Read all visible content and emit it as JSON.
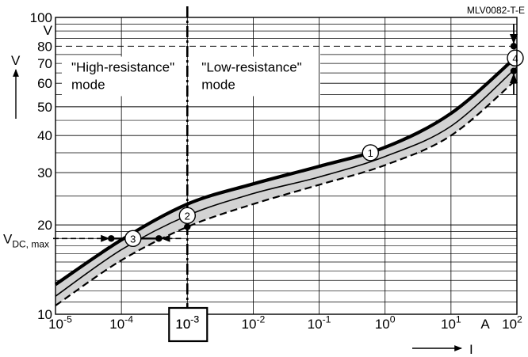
{
  "chart_data": {
    "type": "line",
    "figure_id": "MLV0082-T-E",
    "x_scale": "log",
    "y_scale": "log",
    "xlim": [
      1e-05,
      100
    ],
    "ylim": [
      10,
      100
    ],
    "x_ticks": [
      {
        "value": 1e-05,
        "base": "10",
        "exp": "-5"
      },
      {
        "value": 0.0001,
        "base": "10",
        "exp": "-4"
      },
      {
        "value": 0.001,
        "base": "10",
        "exp": "-3"
      },
      {
        "value": 0.01,
        "base": "10",
        "exp": "-2"
      },
      {
        "value": 0.1,
        "base": "10",
        "exp": "-1"
      },
      {
        "value": 1,
        "base": "10",
        "exp": "0"
      },
      {
        "value": 10,
        "base": "10",
        "exp": "1"
      },
      {
        "value": 100,
        "base": "10",
        "exp": "2"
      }
    ],
    "x_unit": "A",
    "x_symbol": "I",
    "y_ticks": [
      10,
      20,
      30,
      40,
      50,
      60,
      70,
      80,
      100
    ],
    "y_unit": "V",
    "y_symbol": "V",
    "grid": true,
    "regions": [
      {
        "label_line1": "\"High-resistance\"",
        "label_line2": "mode"
      },
      {
        "label_line1": "\"Low-resistance\"",
        "label_line2": "mode"
      }
    ],
    "boundary_current": 0.001,
    "boundary_label": {
      "base": "10",
      "exp": "-3"
    },
    "vdc_label": {
      "main": "V",
      "sub": "DC, max"
    },
    "vdc_value": 18,
    "series": [
      {
        "style": "upper-bold",
        "x": [
          1e-05,
          0.0001,
          0.001,
          0.01,
          0.1,
          1,
          10,
          100
        ],
        "y": [
          12.6,
          17.8,
          23.5,
          27.5,
          31.5,
          36.5,
          47.5,
          74
        ]
      },
      {
        "style": "typical",
        "x": [
          1e-05,
          0.0001,
          0.001,
          0.01,
          0.1,
          1,
          10,
          100
        ],
        "y": [
          11.5,
          16.5,
          21.5,
          25.5,
          29,
          34,
          43,
          68
        ]
      },
      {
        "style": "lower-dashed",
        "x": [
          1e-05,
          0.0001,
          0.001,
          0.01,
          0.1,
          1,
          10,
          100
        ],
        "y": [
          10.7,
          15.2,
          19.7,
          23.5,
          27.3,
          31.8,
          40,
          62
        ]
      }
    ],
    "markers": [
      {
        "id": "1",
        "x": 0.6,
        "y": 35
      },
      {
        "id": "2",
        "x": 0.001,
        "y": 21.5
      },
      {
        "id": "3",
        "x": 0.00015,
        "y": 18
      },
      {
        "id": "4",
        "x": 100,
        "y": 73
      }
    ],
    "points": [
      {
        "x": 0.001,
        "y": 19.7
      },
      {
        "x": 7e-05,
        "y": 18
      },
      {
        "x": 0.00037,
        "y": 18
      },
      {
        "x": 100,
        "y": 80
      },
      {
        "x": 100,
        "y": 66
      }
    ],
    "reference_level": 80
  }
}
